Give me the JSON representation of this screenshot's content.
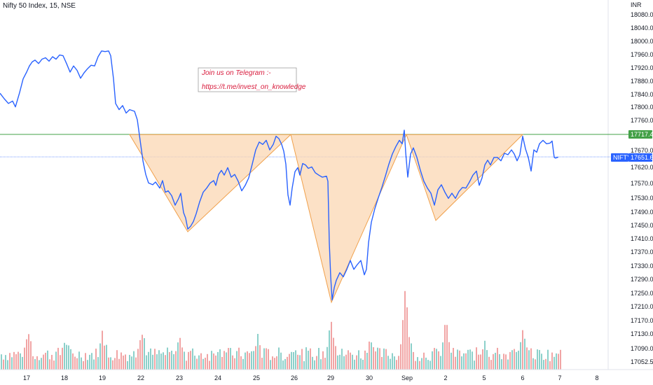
{
  "header": {
    "title": "Nifty 50 Index, 15, NSE"
  },
  "currency_label": "INR",
  "note": {
    "line1": "Join us on Telegram :-",
    "line2": "https://t.me/invest_on_knowledge"
  },
  "badges": {
    "resistance": {
      "value": "17717.40",
      "color": "#43a047"
    },
    "symbol": "NIFTY",
    "last": {
      "value": "17651.60",
      "color": "#2962ff"
    }
  },
  "colors": {
    "price": "#2962ff",
    "pattern_fill": "#fbd7b3",
    "pattern_stroke": "#f0a04b",
    "vol_up": "#80cbc4",
    "vol_down": "#ef9a9a"
  },
  "chart_data": {
    "type": "line",
    "y_ticks": [
      "18080.00",
      "18040.00",
      "18000.00",
      "17960.00",
      "17920.00",
      "17880.00",
      "17840.00",
      "17800.00",
      "17760.00",
      "17670.00",
      "17620.00",
      "17570.00",
      "17530.00",
      "17490.00",
      "17450.00",
      "17410.00",
      "17370.00",
      "17330.00",
      "17290.00",
      "17250.00",
      "17210.00",
      "17170.00",
      "17130.00",
      "17090.00",
      "17052.50"
    ],
    "x_ticks": [
      "17",
      "18",
      "19",
      "22",
      "23",
      "24",
      "25",
      "26",
      "29",
      "30",
      "Sep",
      "2",
      "5",
      "6",
      "7",
      "8"
    ],
    "resistance_level": 17717.4,
    "last_price": 17651.6,
    "pattern_points": [
      {
        "t": 185,
        "v": 17717
      },
      {
        "t": 268,
        "v": 17432
      },
      {
        "t": 415,
        "v": 17717
      },
      {
        "t": 473,
        "v": 17225
      },
      {
        "t": 580,
        "v": 17717
      },
      {
        "t": 622,
        "v": 17465
      },
      {
        "t": 746,
        "v": 17717
      }
    ],
    "price_series": [
      [
        0,
        17838
      ],
      [
        6,
        17822
      ],
      [
        12,
        17808
      ],
      [
        18,
        17815
      ],
      [
        22,
        17798
      ],
      [
        28,
        17840
      ],
      [
        33,
        17880
      ],
      [
        38,
        17900
      ],
      [
        42,
        17918
      ],
      [
        46,
        17930
      ],
      [
        50,
        17935
      ],
      [
        55,
        17925
      ],
      [
        60,
        17938
      ],
      [
        65,
        17942
      ],
      [
        70,
        17932
      ],
      [
        75,
        17945
      ],
      [
        80,
        17938
      ],
      [
        85,
        17950
      ],
      [
        90,
        17948
      ],
      [
        95,
        17925
      ],
      [
        100,
        17900
      ],
      [
        105,
        17918
      ],
      [
        110,
        17905
      ],
      [
        115,
        17882
      ],
      [
        120,
        17898
      ],
      [
        125,
        17910
      ],
      [
        130,
        17920
      ],
      [
        135,
        17918
      ],
      [
        140,
        17945
      ],
      [
        145,
        17962
      ],
      [
        150,
        17960
      ],
      [
        155,
        17962
      ],
      [
        158,
        17948
      ],
      [
        162,
        17880
      ],
      [
        165,
        17808
      ],
      [
        170,
        17790
      ],
      [
        175,
        17802
      ],
      [
        180,
        17780
      ],
      [
        185,
        17790
      ],
      [
        192,
        17785
      ],
      [
        196,
        17760
      ],
      [
        200,
        17700
      ],
      [
        204,
        17640
      ],
      [
        208,
        17600
      ],
      [
        212,
        17575
      ],
      [
        218,
        17570
      ],
      [
        222,
        17578
      ],
      [
        228,
        17560
      ],
      [
        232,
        17582
      ],
      [
        236,
        17548
      ],
      [
        240,
        17552
      ],
      [
        245,
        17538
      ],
      [
        250,
        17510
      ],
      [
        255,
        17530
      ],
      [
        258,
        17545
      ],
      [
        262,
        17488
      ],
      [
        265,
        17472
      ],
      [
        268,
        17440
      ],
      [
        272,
        17448
      ],
      [
        276,
        17462
      ],
      [
        280,
        17485
      ],
      [
        285,
        17520
      ],
      [
        290,
        17548
      ],
      [
        295,
        17560
      ],
      [
        300,
        17575
      ],
      [
        305,
        17582
      ],
      [
        308,
        17568
      ],
      [
        312,
        17600
      ],
      [
        316,
        17612
      ],
      [
        320,
        17598
      ],
      [
        325,
        17620
      ],
      [
        330,
        17592
      ],
      [
        335,
        17600
      ],
      [
        340,
        17580
      ],
      [
        345,
        17552
      ],
      [
        350,
        17568
      ],
      [
        355,
        17590
      ],
      [
        360,
        17630
      ],
      [
        365,
        17672
      ],
      [
        370,
        17695
      ],
      [
        375,
        17688
      ],
      [
        380,
        17700
      ],
      [
        385,
        17672
      ],
      [
        390,
        17688
      ],
      [
        394,
        17712
      ],
      [
        398,
        17705
      ],
      [
        402,
        17688
      ],
      [
        405,
        17668
      ],
      [
        408,
        17630
      ],
      [
        411,
        17540
      ],
      [
        414,
        17510
      ],
      [
        417,
        17560
      ],
      [
        421,
        17608
      ],
      [
        425,
        17620
      ],
      [
        428,
        17598
      ],
      [
        432,
        17632
      ],
      [
        436,
        17628
      ],
      [
        440,
        17618
      ],
      [
        445,
        17622
      ],
      [
        450,
        17605
      ],
      [
        455,
        17598
      ],
      [
        460,
        17592
      ],
      [
        466,
        17595
      ],
      [
        468,
        17580
      ],
      [
        470,
        17400
      ],
      [
        472,
        17300
      ],
      [
        474,
        17232
      ],
      [
        477,
        17268
      ],
      [
        480,
        17290
      ],
      [
        485,
        17312
      ],
      [
        490,
        17300
      ],
      [
        495,
        17322
      ],
      [
        500,
        17348
      ],
      [
        505,
        17322
      ],
      [
        510,
        17336
      ],
      [
        515,
        17348
      ],
      [
        520,
        17306
      ],
      [
        523,
        17322
      ],
      [
        526,
        17400
      ],
      [
        530,
        17460
      ],
      [
        535,
        17500
      ],
      [
        540,
        17532
      ],
      [
        545,
        17562
      ],
      [
        550,
        17595
      ],
      [
        555,
        17630
      ],
      [
        560,
        17660
      ],
      [
        565,
        17682
      ],
      [
        570,
        17700
      ],
      [
        574,
        17690
      ],
      [
        577,
        17730
      ],
      [
        579,
        17665
      ],
      [
        582,
        17592
      ],
      [
        586,
        17660
      ],
      [
        590,
        17678
      ],
      [
        595,
        17650
      ],
      [
        600,
        17612
      ],
      [
        605,
        17580
      ],
      [
        610,
        17560
      ],
      [
        615,
        17545
      ],
      [
        620,
        17510
      ],
      [
        625,
        17555
      ],
      [
        630,
        17570
      ],
      [
        635,
        17548
      ],
      [
        640,
        17530
      ],
      [
        645,
        17545
      ],
      [
        650,
        17530
      ],
      [
        655,
        17550
      ],
      [
        660,
        17562
      ],
      [
        665,
        17560
      ],
      [
        670,
        17578
      ],
      [
        675,
        17598
      ],
      [
        680,
        17610
      ],
      [
        684,
        17568
      ],
      [
        688,
        17590
      ],
      [
        692,
        17628
      ],
      [
        696,
        17642
      ],
      [
        700,
        17628
      ],
      [
        705,
        17650
      ],
      [
        710,
        17650
      ],
      [
        715,
        17640
      ],
      [
        720,
        17662
      ],
      [
        725,
        17658
      ],
      [
        730,
        17672
      ],
      [
        734,
        17660
      ],
      [
        738,
        17640
      ],
      [
        742,
        17658
      ],
      [
        746,
        17712
      ],
      [
        750,
        17675
      ],
      [
        754,
        17650
      ],
      [
        758,
        17610
      ],
      [
        762,
        17672
      ],
      [
        766,
        17665
      ],
      [
        770,
        17690
      ],
      [
        775,
        17700
      ],
      [
        780,
        17690
      ],
      [
        785,
        17692
      ],
      [
        788,
        17698
      ],
      [
        791,
        17650
      ],
      [
        793,
        17648
      ],
      [
        797,
        17651
      ]
    ]
  }
}
